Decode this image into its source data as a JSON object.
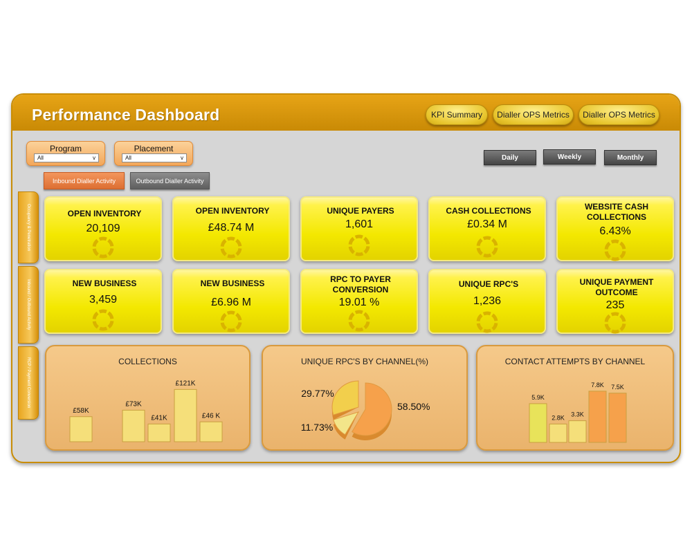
{
  "header": {
    "title": "Performance Dashboard",
    "nav": [
      "KPI Summary",
      "Dialler OPS Metrics",
      "Dialler OPS Metrics"
    ]
  },
  "filters": [
    {
      "label": "Program",
      "value": "All"
    },
    {
      "label": "Placement",
      "value": "All"
    }
  ],
  "activity_tabs": {
    "inbound": "Inbound Dialler Activity",
    "outbound": "Outbound Dialler Activity"
  },
  "periods": [
    "Daily",
    "Weekly",
    "Monthly"
  ],
  "side_tabs": [
    "Occupancy & Penetration",
    "Inbound / Outbound Activity",
    "RCP / Payment Conversion"
  ],
  "kpis": [
    {
      "title": "OPEN INVENTORY",
      "value": "20,109"
    },
    {
      "title": "OPEN INVENTORY",
      "value": "£48.74 M"
    },
    {
      "title": "UNIQUE PAYERS",
      "value": "1,601"
    },
    {
      "title": "CASH COLLECTIONS",
      "value": "£0.34 M"
    },
    {
      "title": "WEBSITE CASH COLLECTIONS",
      "value": "6.43%"
    },
    {
      "title": "NEW BUSINESS",
      "value": "3,459"
    },
    {
      "title": "NEW BUSINESS",
      "value": "£6.96 M"
    },
    {
      "title": "RPC TO PAYER CONVERSION",
      "value": "19.01 %"
    },
    {
      "title": "UNIQUE RPC'S",
      "value": "1,236"
    },
    {
      "title": "UNIQUE PAYMENT OUTCOME",
      "value": "235"
    }
  ],
  "colors": {
    "kpi_yellow": "#f3e800",
    "header_orange": "#d9960c",
    "panel_orange": "#f0bd7b",
    "bar_light": "#f5df7a",
    "bar_orange": "#f6a14b",
    "bar_green": "#e8e35a"
  },
  "chart_data": [
    {
      "type": "bar",
      "title": "COLLECTIONS",
      "values": [
        58,
        73,
        41,
        121,
        46
      ],
      "labels": [
        "£58K",
        "£73K",
        "£41K",
        "£121K",
        "£46 K"
      ]
    },
    {
      "type": "pie",
      "title": "UNIQUE RPC'S BY CHANNEL(%)",
      "values": [
        58.5,
        11.73,
        29.77
      ],
      "labels": [
        "58.50%",
        "11.73%",
        "29.77%"
      ],
      "colors": [
        "#f6a14b",
        "#f3e58a",
        "#f2cf4c"
      ]
    },
    {
      "type": "bar",
      "title": "CONTACT ATTEMPTS BY CHANNEL",
      "values": [
        5.9,
        2.8,
        3.3,
        7.8,
        7.5
      ],
      "labels": [
        "5.9K",
        "2.8K",
        "3.3K",
        "7.8K",
        "7.5K"
      ],
      "colors": [
        "#e8e35a",
        "#f5df7a",
        "#f5df7a",
        "#f6a14b",
        "#f6a14b"
      ]
    }
  ]
}
